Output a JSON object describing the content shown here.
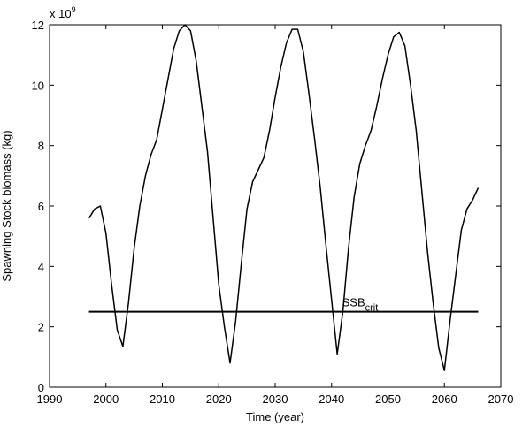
{
  "chart_data": {
    "type": "line",
    "title": "",
    "xlabel": "Time (year)",
    "ylabel": "Spawning Stock biomass (kg)",
    "xlim": [
      1990,
      2070
    ],
    "ylim": [
      0,
      12
    ],
    "xticks": [
      1990,
      2000,
      2010,
      2020,
      2030,
      2040,
      2050,
      2060,
      2070
    ],
    "yticks": [
      0,
      2,
      4,
      6,
      8,
      10,
      12
    ],
    "y_multiplier": {
      "base": "x 10",
      "exponent": "9"
    },
    "grid": false,
    "series": [
      {
        "x": [
          1997,
          1998,
          1999,
          2000,
          2001,
          2002,
          2003,
          2004,
          2005,
          2006,
          2007,
          2008,
          2009,
          2010,
          2011,
          2012,
          2013,
          2014,
          2015,
          2016,
          2017,
          2018,
          2019,
          2020,
          2021,
          2022,
          2023,
          2024,
          2025,
          2026,
          2027,
          2028,
          2029,
          2030,
          2031,
          2032,
          2033,
          2034,
          2035,
          2036,
          2037,
          2038,
          2039,
          2040,
          2041,
          2042,
          2043,
          2044,
          2045,
          2046,
          2047,
          2048,
          2049,
          2050,
          2051,
          2052,
          2053,
          2054,
          2055,
          2056,
          2057,
          2058,
          2059,
          2060,
          2061,
          2062,
          2063,
          2064,
          2065,
          2066
        ],
        "values": [
          5.6,
          5.9,
          6.0,
          5.1,
          3.4,
          1.9,
          1.35,
          2.8,
          4.6,
          6.0,
          7.0,
          7.7,
          8.2,
          9.2,
          10.2,
          11.2,
          11.8,
          12.0,
          11.8,
          10.8,
          9.3,
          7.8,
          5.6,
          3.4,
          2.0,
          0.8,
          2.2,
          4.1,
          5.9,
          6.8,
          7.2,
          7.6,
          8.5,
          9.6,
          10.6,
          11.4,
          11.85,
          11.85,
          11.1,
          9.7,
          8.2,
          6.6,
          4.7,
          2.9,
          1.1,
          2.5,
          4.6,
          6.3,
          7.4,
          8.0,
          8.5,
          9.3,
          10.2,
          11.0,
          11.6,
          11.75,
          11.3,
          10.0,
          8.5,
          6.5,
          4.5,
          2.8,
          1.3,
          0.55,
          2.2,
          3.7,
          5.2,
          5.9,
          6.2,
          6.6
        ]
      },
      {
        "name": "SSB",
        "x": [
          1997,
          2066
        ],
        "values": [
          2.5,
          2.5
        ]
      }
    ],
    "annotations": [
      {
        "text": "SSB",
        "subscript": "crit",
        "x": 2045,
        "y": 2.5
      }
    ]
  }
}
